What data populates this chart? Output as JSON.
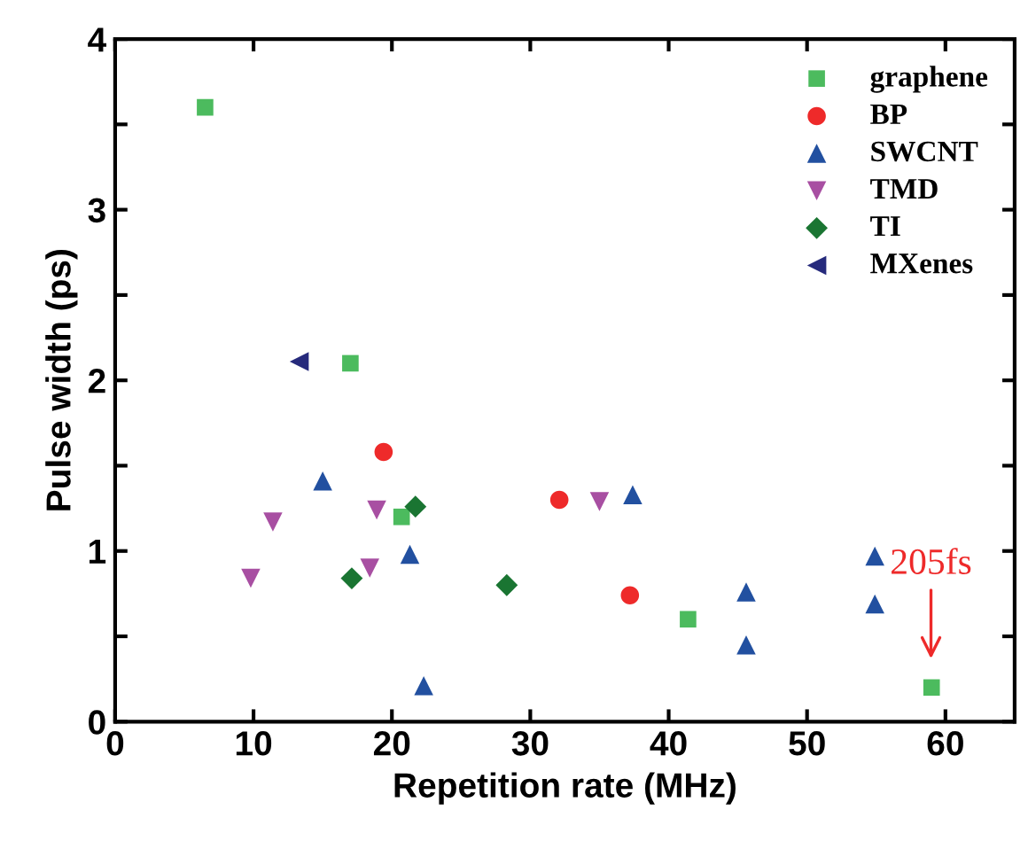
{
  "chart_data": {
    "type": "scatter",
    "xlabel": "Repetition rate (MHz)",
    "ylabel": "Pulse width (ps)",
    "xlim": [
      0,
      65
    ],
    "ylim": [
      0,
      4
    ],
    "xticks": [
      0,
      10,
      20,
      30,
      40,
      50,
      60
    ],
    "yticks": [
      0,
      {
        "value": 0.5,
        "label": null
      },
      1,
      {
        "value": 1.5,
        "label": null
      },
      2,
      {
        "value": 2.5,
        "label": null
      },
      3,
      {
        "value": 3.5,
        "label": null
      },
      4
    ],
    "grid": false,
    "legend": "top right",
    "annotations": [
      "205fs"
    ],
    "series": [
      {
        "name": "graphene",
        "color": "#4cbb5e",
        "marker": "square",
        "x": [
          6.5,
          17,
          20.7,
          41.4,
          59
        ],
        "values": [
          3.6,
          2.1,
          1.2,
          0.6,
          0.2
        ]
      },
      {
        "name": "BP",
        "color": "#ee2a2a",
        "marker": "circle",
        "x": [
          19.4,
          32.1,
          37.2
        ],
        "values": [
          1.58,
          1.3,
          0.74
        ]
      },
      {
        "name": "SWCNT",
        "color": "#2250a0",
        "marker": "triangle",
        "x": [
          15,
          21.3,
          22.3,
          37.4,
          45.6,
          45.6,
          54.9,
          54.9
        ],
        "values": [
          1.41,
          0.98,
          0.21,
          1.33,
          0.76,
          0.45,
          0.97,
          0.69
        ]
      },
      {
        "name": "TMD",
        "color": "#a84fa2",
        "marker": "triangle_down",
        "x": [
          9.8,
          11.4,
          18.9,
          18.4,
          35
        ],
        "values": [
          0.84,
          1.17,
          1.24,
          0.9,
          1.29
        ]
      },
      {
        "name": "TI",
        "color": "#1a7532",
        "marker": "diamond",
        "x": [
          17.1,
          21.7,
          28.3
        ],
        "values": [
          0.84,
          1.26,
          0.8
        ]
      },
      {
        "name": "MXenes",
        "color": "#262a7c",
        "marker": "triangle_left",
        "x": [
          13.3
        ],
        "values": [
          2.11
        ]
      }
    ]
  }
}
